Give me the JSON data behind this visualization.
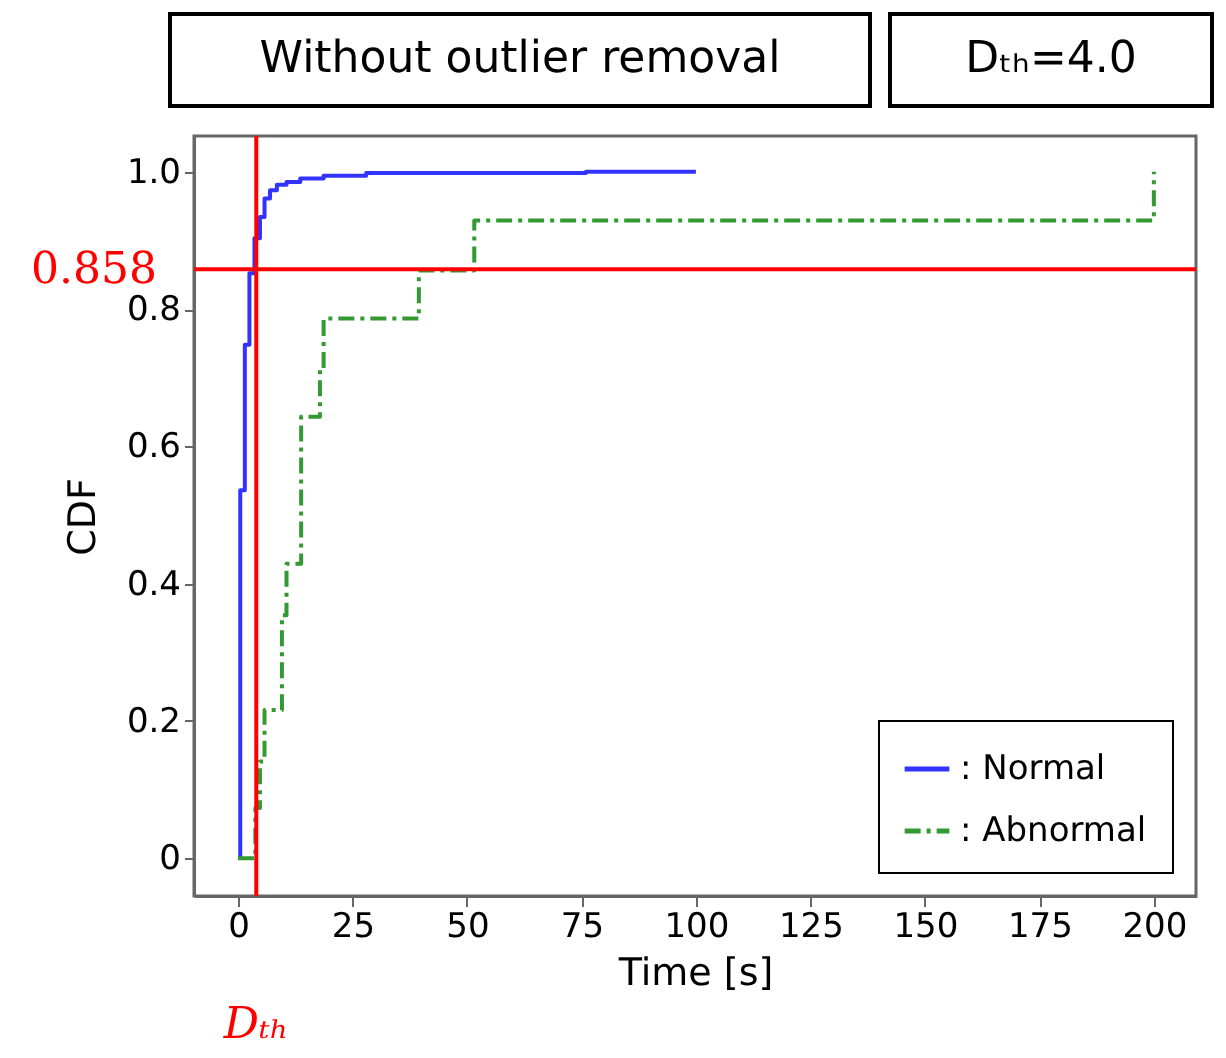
{
  "chart_data": {
    "type": "step",
    "title": "Without outlier removal",
    "annotations": [
      "Dₜₕ=4.0"
    ],
    "xlabel": "Time [s]",
    "ylabel": "CDF",
    "xlim": [
      -9.6,
      209.2
    ],
    "ylim": [
      -0.055,
      1.052
    ],
    "xticks": [
      0,
      25,
      50,
      75,
      100,
      125,
      150,
      175,
      200
    ],
    "yticks": [
      0,
      0.2,
      0.4,
      0.6,
      0.8,
      {
        "value": 1,
        "label": "1.0"
      }
    ],
    "grid": false,
    "legend": "bottom right",
    "ref_lines": [
      {
        "axis": "x",
        "value": 4,
        "label": "Dₜₕ",
        "color": "#ff0000"
      },
      {
        "axis": "y",
        "value": 0.858,
        "label": "0.858",
        "color": "#ff0000"
      }
    ],
    "series": [
      {
        "name": ": Normal",
        "color": "#3333ff",
        "line_style": "solid",
        "x": [
          0.5,
          0.5,
          1.5,
          2.5,
          3.6,
          4.8,
          5.8,
          7,
          8.5,
          10.6,
          13.6,
          18.7,
          28,
          76,
          100
        ],
        "values": [
          0,
          0.536,
          0.748,
          0.852,
          0.903,
          0.934,
          0.961,
          0.973,
          0.981,
          0.985,
          0.99,
          0.994,
          0.998,
          1.0,
          1.0
        ]
      },
      {
        "name": ": Abnormal",
        "color": "#339933",
        "line_style": "dashed",
        "x": [
          0,
          3.8,
          4.8,
          5.8,
          9.6,
          10.6,
          13.8,
          17.9,
          18.7,
          39.5,
          51.6,
          200
        ],
        "values": [
          0,
          0.073,
          0.141,
          0.216,
          0.354,
          0.429,
          0.643,
          0.714,
          0.786,
          0.856,
          0.929,
          1.0
        ]
      }
    ]
  }
}
